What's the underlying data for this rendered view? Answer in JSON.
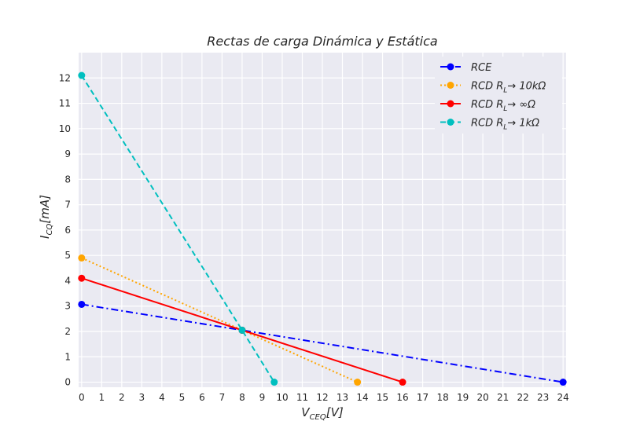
{
  "chart_data": {
    "type": "line",
    "title": "Rectas de carga Dinámica y Estática",
    "xlabel": "V_CEQ[V]",
    "ylabel": "I_CQ[mA]",
    "xlim": [
      0,
      24
    ],
    "ylim": [
      0,
      13
    ],
    "x_ticks": [
      0,
      1,
      2,
      3,
      4,
      5,
      6,
      7,
      8,
      9,
      10,
      11,
      12,
      13,
      14,
      15,
      16,
      17,
      18,
      19,
      20,
      21,
      22,
      23,
      24
    ],
    "y_ticks": [
      0,
      1,
      2,
      3,
      4,
      5,
      6,
      7,
      8,
      9,
      10,
      11,
      12
    ],
    "grid": true,
    "legend_position": "top-right",
    "series": [
      {
        "name": "RCE",
        "color": "#0000ff",
        "dash": "dashdot",
        "x": [
          0,
          8,
          24
        ],
        "y": [
          3.07,
          2.05,
          0
        ]
      },
      {
        "name": "RCD R_L→ 10kΩ",
        "color": "#ffa500",
        "dash": "dotted",
        "x": [
          0,
          8,
          13.75
        ],
        "y": [
          4.9,
          2.05,
          0
        ]
      },
      {
        "name": "RCD R_L→ ∞Ω",
        "color": "#ff0000",
        "dash": "solid",
        "x": [
          0,
          8,
          16
        ],
        "y": [
          4.1,
          2.05,
          0
        ]
      },
      {
        "name": "RCD R_L→ 1kΩ",
        "color": "#00bfbf",
        "dash": "dashed",
        "x": [
          0,
          8,
          9.6
        ],
        "y": [
          12.1,
          2.05,
          0
        ]
      }
    ]
  }
}
